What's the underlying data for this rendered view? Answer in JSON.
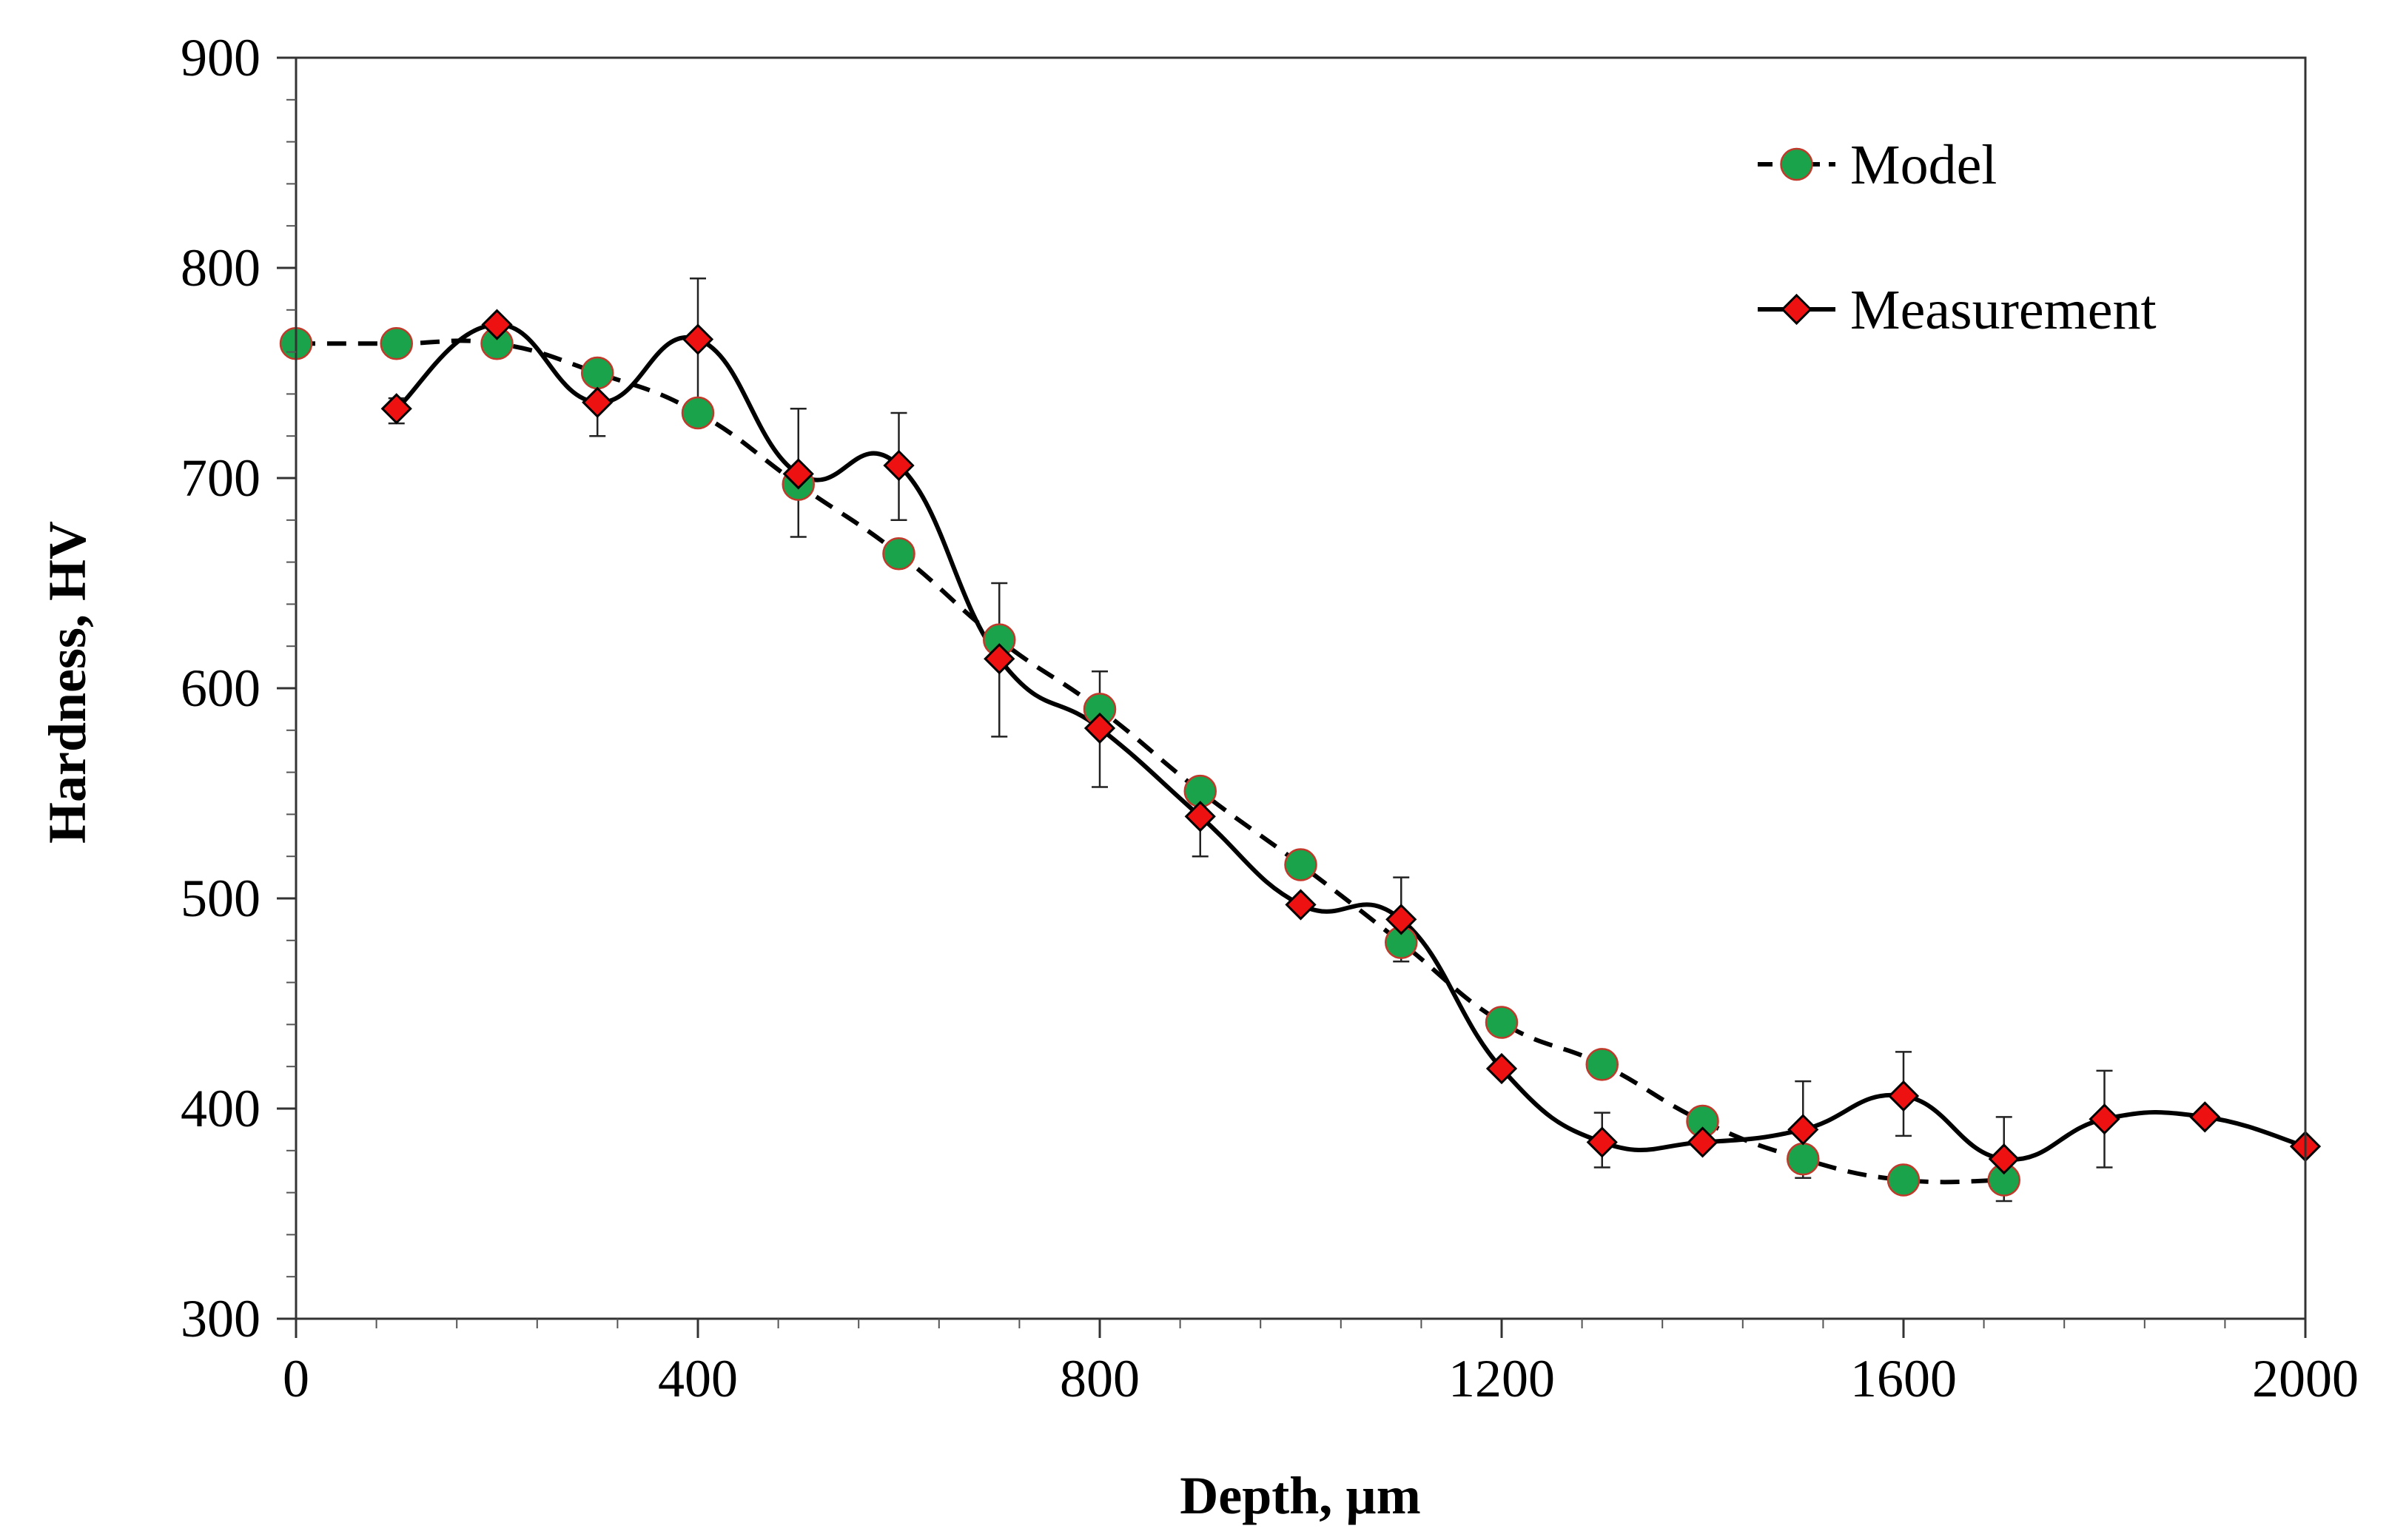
{
  "chart_data": {
    "type": "line",
    "title": "",
    "xlabel": "Depth, µm",
    "ylabel": "Hardness, HV",
    "xlim": [
      0,
      2000
    ],
    "ylim": [
      300,
      900
    ],
    "x_ticks": [
      0,
      400,
      800,
      1200,
      1600,
      2000
    ],
    "x_tick_labels": [
      "0",
      "400",
      "800",
      "1200",
      "1600",
      "2000"
    ],
    "x_minor_step": 80,
    "y_ticks": [
      300,
      400,
      500,
      600,
      700,
      800,
      900
    ],
    "y_tick_labels": [
      "300",
      "400",
      "500",
      "600",
      "700",
      "800",
      "900"
    ],
    "y_minor_step": 20,
    "grid": false,
    "legend_position": "top-right",
    "series": [
      {
        "name": "Model",
        "marker": "circle",
        "line": "dashed",
        "marker_color": "#1aa34a",
        "marker_edge": "#c0392b",
        "line_color": "#000000",
        "x": [
          0,
          100,
          200,
          300,
          400,
          500,
          600,
          700,
          800,
          900,
          1000,
          1100,
          1200,
          1300,
          1400,
          1500,
          1600,
          1700
        ],
        "y": [
          764,
          764,
          764,
          750,
          731,
          697,
          664,
          623,
          590,
          551,
          516,
          479,
          441,
          421,
          394,
          376,
          366,
          366
        ]
      },
      {
        "name": "Measurement",
        "marker": "diamond",
        "line": "solid-smooth",
        "marker_color": "#ee1111",
        "marker_edge": "#000000",
        "line_color": "#000000",
        "x": [
          100,
          200,
          300,
          400,
          500,
          600,
          700,
          800,
          900,
          1000,
          1100,
          1200,
          1300,
          1400,
          1500,
          1600,
          1700,
          1800,
          1900,
          2000
        ],
        "y": [
          733,
          773,
          736,
          766,
          702,
          706,
          614,
          581,
          539,
          497,
          490,
          419,
          384,
          384,
          390,
          406,
          376,
          395,
          396,
          382
        ],
        "error_bars": [
          {
            "x": 100,
            "low": 726,
            "high": 738
          },
          {
            "x": 300,
            "low": 720,
            "high": 750
          },
          {
            "x": 400,
            "low": 735,
            "high": 795
          },
          {
            "x": 500,
            "low": 672,
            "high": 733
          },
          {
            "x": 600,
            "low": 680,
            "high": 731
          },
          {
            "x": 700,
            "low": 577,
            "high": 650
          },
          {
            "x": 800,
            "low": 553,
            "high": 608
          },
          {
            "x": 900,
            "low": 520,
            "high": 555
          },
          {
            "x": 1100,
            "low": 470,
            "high": 510
          },
          {
            "x": 1300,
            "low": 372,
            "high": 398
          },
          {
            "x": 1500,
            "low": 367,
            "high": 413
          },
          {
            "x": 1600,
            "low": 387,
            "high": 427
          },
          {
            "x": 1700,
            "low": 356,
            "high": 396
          },
          {
            "x": 1800,
            "low": 372,
            "high": 418
          }
        ]
      }
    ]
  }
}
